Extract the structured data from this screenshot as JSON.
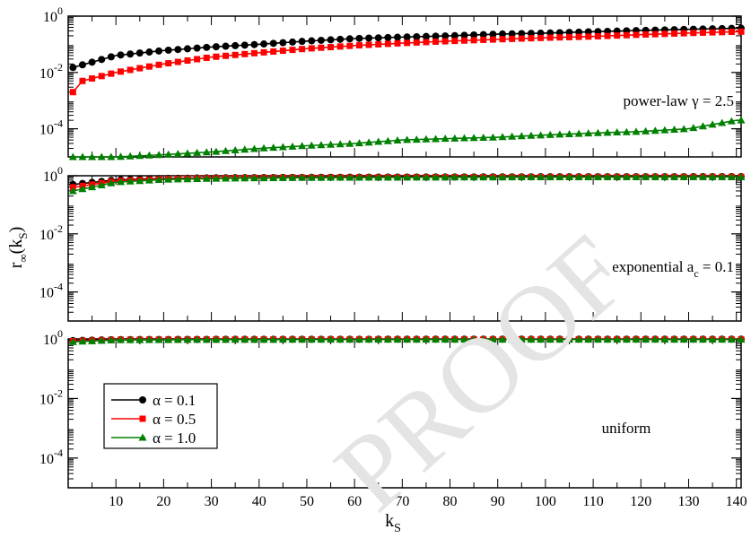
{
  "watermark": "PROOF",
  "chart_data": {
    "type": "line",
    "xlabel": "k",
    "xlabel_sub": "S",
    "ylabel": "r",
    "ylabel_sub": "∞",
    "ylabel_arg": "(k",
    "ylabel_arg_sub": "S",
    "ylabel_close": ")",
    "x_start": 1,
    "x_end": 141,
    "xlim": [
      0,
      141
    ],
    "xticks": [
      10,
      20,
      30,
      40,
      50,
      60,
      70,
      80,
      90,
      100,
      110,
      120,
      130,
      140
    ],
    "xtick_labels": [
      "10",
      "20",
      "30",
      "40",
      "50",
      "60",
      "70",
      "80",
      "90",
      "100",
      "110",
      "120",
      "130",
      "140"
    ],
    "y_scale": "log",
    "ylim": [
      1e-05,
      1
    ],
    "yticks": [
      0.0001,
      0.01,
      1
    ],
    "ytick_base": "10",
    "ytick_exponents": [
      "-4",
      "-2",
      "0"
    ],
    "grid": false,
    "legend_position": "lower-left of bottom panel",
    "legend": [
      {
        "label": "α = 0.1",
        "color": "#000000",
        "marker": "circle"
      },
      {
        "label": "α = 0.5",
        "color": "#ff0000",
        "marker": "square"
      },
      {
        "label": "α = 1.0",
        "color": "#008000",
        "marker": "triangle"
      }
    ],
    "panels": [
      {
        "annotation": "power-law γ = 2.5",
        "series": [
          {
            "name": "α = 0.1",
            "color": "#000000",
            "marker": "circle",
            "x": [
              1,
              10,
              20,
              30,
              40,
              50,
              60,
              70,
              80,
              90,
              100,
              110,
              120,
              130,
              140
            ],
            "y": [
              0.015,
              0.04,
              0.06,
              0.08,
              0.1,
              0.13,
              0.16,
              0.18,
              0.2,
              0.23,
              0.25,
              0.28,
              0.31,
              0.34,
              0.37
            ]
          },
          {
            "name": "α = 0.5",
            "color": "#ff0000",
            "marker": "square",
            "x": [
              1,
              3,
              10,
              20,
              30,
              40,
              50,
              60,
              70,
              80,
              90,
              100,
              110,
              120,
              130,
              140
            ],
            "y": [
              0.002,
              0.005,
              0.01,
              0.02,
              0.035,
              0.05,
              0.07,
              0.09,
              0.11,
              0.13,
              0.15,
              0.17,
              0.19,
              0.22,
              0.25,
              0.28
            ]
          },
          {
            "name": "α = 1.0",
            "color": "#008000",
            "marker": "triangle",
            "x": [
              1,
              10,
              20,
              30,
              40,
              50,
              60,
              70,
              80,
              90,
              100,
              110,
              120,
              130,
              140
            ],
            "y": [
              1e-05,
              1e-05,
              1.2e-05,
              1.5e-05,
              2e-05,
              2.5e-05,
              3e-05,
              4e-05,
              4.5e-05,
              5e-05,
              6e-05,
              7e-05,
              8e-05,
              0.0001,
              0.0002
            ]
          }
        ]
      },
      {
        "annotation": "exponential a",
        "annotation_sub": "c",
        "annotation_tail": " = 0.1",
        "series": [
          {
            "name": "α = 0.1",
            "color": "#000000",
            "marker": "circle",
            "x": [
              1,
              10,
              20,
              30,
              50,
              70,
              100,
              140
            ],
            "y": [
              0.5,
              0.72,
              0.8,
              0.85,
              0.88,
              0.9,
              0.92,
              0.93
            ]
          },
          {
            "name": "α = 0.5",
            "color": "#ff0000",
            "marker": "square",
            "x": [
              1,
              10,
              20,
              30,
              50,
              70,
              100,
              140
            ],
            "y": [
              0.4,
              0.66,
              0.77,
              0.83,
              0.87,
              0.89,
              0.91,
              0.92
            ]
          },
          {
            "name": "α = 1.0",
            "color": "#008000",
            "marker": "triangle",
            "x": [
              1,
              10,
              20,
              30,
              50,
              70,
              100,
              140
            ],
            "y": [
              0.3,
              0.6,
              0.74,
              0.8,
              0.86,
              0.88,
              0.9,
              0.91
            ]
          }
        ]
      },
      {
        "annotation": "uniform",
        "series": [
          {
            "name": "α = 0.1",
            "color": "#000000",
            "marker": "circle",
            "x": [
              1,
              10,
              30,
              70,
              140
            ],
            "y": [
              0.88,
              0.95,
              0.97,
              0.98,
              0.98
            ]
          },
          {
            "name": "α = 0.5",
            "color": "#ff0000",
            "marker": "square",
            "x": [
              1,
              10,
              30,
              70,
              140
            ],
            "y": [
              0.84,
              0.94,
              0.96,
              0.97,
              0.97
            ]
          },
          {
            "name": "α = 1.0",
            "color": "#008000",
            "marker": "triangle",
            "x": [
              1,
              10,
              30,
              70,
              140
            ],
            "y": [
              0.8,
              0.92,
              0.95,
              0.96,
              0.96
            ]
          }
        ]
      }
    ]
  }
}
